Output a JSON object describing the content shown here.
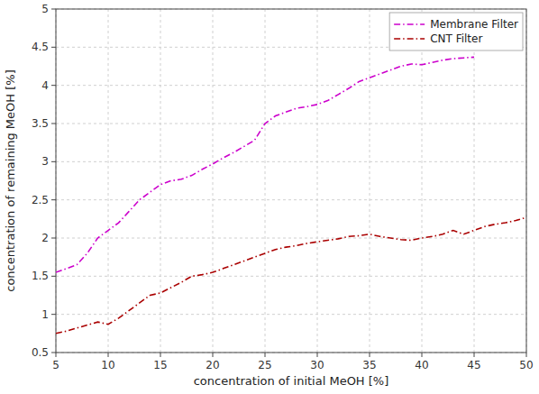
{
  "chart_data": {
    "type": "line",
    "xlabel": "concentration of initial MeOH [%]",
    "ylabel": "concentration of remaining MeOH [%]",
    "series": [
      {
        "name": "Membrane Filter",
        "color": "#cc00cc",
        "line_style": "dash-dot",
        "x": [
          5,
          7,
          8,
          9,
          10,
          11,
          12,
          13,
          14,
          15,
          16,
          17,
          18,
          19,
          20,
          21,
          22,
          23,
          24,
          25,
          26,
          27,
          28,
          29,
          30,
          31,
          32,
          33,
          34,
          35,
          36,
          37,
          38,
          39,
          40,
          41,
          42,
          43,
          44,
          45
        ],
        "values": [
          1.55,
          1.65,
          1.8,
          2.0,
          2.1,
          2.2,
          2.35,
          2.5,
          2.6,
          2.7,
          2.75,
          2.77,
          2.82,
          2.9,
          2.97,
          3.05,
          3.12,
          3.2,
          3.28,
          3.5,
          3.6,
          3.65,
          3.7,
          3.72,
          3.75,
          3.8,
          3.88,
          3.96,
          4.05,
          4.1,
          4.15,
          4.2,
          4.25,
          4.28,
          4.27,
          4.3,
          4.33,
          4.35,
          4.36,
          4.37
        ]
      },
      {
        "name": "CNT Filter",
        "color": "#aa0000",
        "line_style": "dash-dot",
        "x": [
          5,
          6,
          7,
          8,
          9,
          10,
          11,
          12,
          13,
          14,
          15,
          16,
          17,
          18,
          19,
          20,
          21,
          22,
          23,
          24,
          25,
          26,
          27,
          28,
          29,
          30,
          31,
          32,
          33,
          34,
          35,
          36,
          37,
          38,
          39,
          40,
          41,
          42,
          43,
          44,
          45,
          46,
          47,
          48,
          49,
          50
        ],
        "values": [
          0.75,
          0.78,
          0.82,
          0.86,
          0.9,
          0.87,
          0.95,
          1.05,
          1.15,
          1.25,
          1.28,
          1.35,
          1.42,
          1.5,
          1.52,
          1.55,
          1.6,
          1.65,
          1.7,
          1.75,
          1.8,
          1.85,
          1.88,
          1.9,
          1.93,
          1.95,
          1.97,
          1.99,
          2.02,
          2.03,
          2.05,
          2.02,
          2.0,
          1.98,
          1.97,
          2.0,
          2.02,
          2.05,
          2.1,
          2.05,
          2.1,
          2.15,
          2.18,
          2.2,
          2.23,
          2.27
        ]
      }
    ],
    "xlim": [
      5,
      50
    ],
    "ylim": [
      0.5,
      5
    ],
    "xticks": [
      5,
      10,
      15,
      20,
      25,
      30,
      35,
      40,
      45,
      50
    ],
    "yticks": [
      0.5,
      1,
      1.5,
      2,
      2.5,
      3,
      3.5,
      4,
      4.5,
      5
    ],
    "grid": true,
    "legend": "upper right"
  }
}
